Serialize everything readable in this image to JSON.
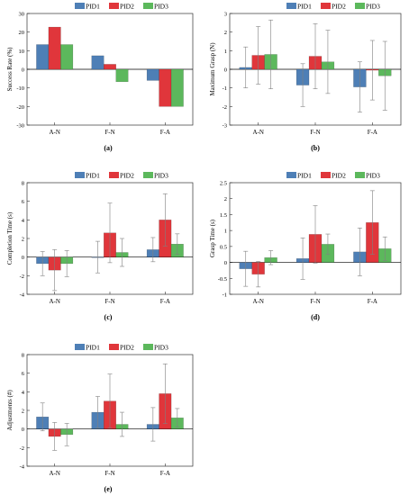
{
  "figure": {
    "legend_labels": [
      "PID1",
      "PID2",
      "PID3"
    ]
  },
  "colors": {
    "PID1": "#4e7fb6",
    "PID2": "#e0363b",
    "PID3": "#5cb85c",
    "error_bar": "#808080",
    "axis": "#000000",
    "grid_zero": "#000000"
  },
  "chart_data": [
    {
      "panel": "a",
      "caption": "(a)",
      "type": "bar",
      "ylabel": "Success Rate (%)",
      "ylim": [
        -30,
        30
      ],
      "yticks": [
        -30,
        -20,
        -10,
        0,
        10,
        20,
        30
      ],
      "categories": [
        "A-N",
        "F-N",
        "F-A"
      ],
      "legend": "top",
      "series": [
        {
          "name": "PID1",
          "values": [
            13.3,
            7.3,
            -6.0
          ]
        },
        {
          "name": "PID2",
          "values": [
            22.7,
            2.7,
            -20.0
          ]
        },
        {
          "name": "PID3",
          "values": [
            13.3,
            -6.7,
            -20.0
          ]
        }
      ]
    },
    {
      "panel": "b",
      "caption": "(b)",
      "type": "bar",
      "ylabel": "Maximum Grasp (N)",
      "ylim": [
        -3,
        3
      ],
      "yticks": [
        -3,
        -2,
        -1,
        0,
        1,
        2,
        3
      ],
      "categories": [
        "A-N",
        "F-N",
        "F-A"
      ],
      "legend": "top",
      "series": [
        {
          "name": "PID1",
          "values": [
            0.1,
            -0.85,
            -0.95
          ],
          "error": [
            1.1,
            1.15,
            1.35
          ]
        },
        {
          "name": "PID2",
          "values": [
            0.75,
            0.7,
            -0.05
          ],
          "error": [
            1.55,
            1.75,
            1.6
          ]
        },
        {
          "name": "PID3",
          "values": [
            0.8,
            0.4,
            -0.35
          ],
          "error": [
            1.85,
            1.7,
            1.85
          ]
        }
      ]
    },
    {
      "panel": "c",
      "caption": "(c)",
      "type": "bar",
      "ylabel": "Completion Time (s)",
      "ylim": [
        -4,
        8
      ],
      "yticks": [
        -4,
        -2,
        0,
        2,
        4,
        6,
        8
      ],
      "categories": [
        "A-N",
        "F-N",
        "F-A"
      ],
      "legend": "top",
      "series": [
        {
          "name": "PID1",
          "values": [
            -0.7,
            0.0,
            0.8
          ],
          "error": [
            1.3,
            1.7,
            1.3
          ]
        },
        {
          "name": "PID2",
          "values": [
            -1.4,
            2.6,
            4.0
          ],
          "error": [
            2.2,
            3.2,
            2.8
          ]
        },
        {
          "name": "PID3",
          "values": [
            -0.7,
            0.5,
            1.4
          ],
          "error": [
            1.4,
            1.5,
            1.1
          ]
        }
      ]
    },
    {
      "panel": "d",
      "caption": "(d)",
      "type": "bar",
      "ylabel": "Grasp Time (s)",
      "ylim": [
        -1,
        2.5
      ],
      "yticks": [
        -1,
        -0.5,
        0,
        0.5,
        1,
        1.5,
        2,
        2.5
      ],
      "categories": [
        "A-N",
        "F-N",
        "F-A"
      ],
      "legend": "top",
      "series": [
        {
          "name": "PID1",
          "values": [
            -0.2,
            0.12,
            0.33
          ],
          "error": [
            0.55,
            0.65,
            0.75
          ]
        },
        {
          "name": "PID2",
          "values": [
            -0.37,
            0.88,
            1.25
          ],
          "error": [
            0.4,
            0.9,
            1.0
          ]
        },
        {
          "name": "PID3",
          "values": [
            0.15,
            0.57,
            0.43
          ],
          "error": [
            0.22,
            0.32,
            0.37
          ]
        }
      ]
    },
    {
      "panel": "e",
      "caption": "(e)",
      "type": "bar",
      "ylabel": "Adjustments (#)",
      "ylim": [
        -4,
        8
      ],
      "yticks": [
        -4,
        -2,
        0,
        2,
        4,
        6,
        8
      ],
      "categories": [
        "A-N",
        "F-N",
        "F-A"
      ],
      "legend": "top",
      "series": [
        {
          "name": "PID1",
          "values": [
            1.3,
            1.8,
            0.5
          ],
          "error": [
            1.5,
            1.7,
            1.8
          ]
        },
        {
          "name": "PID2",
          "values": [
            -0.8,
            3.0,
            3.8
          ],
          "error": [
            1.5,
            2.9,
            3.2
          ]
        },
        {
          "name": "PID3",
          "values": [
            -0.6,
            0.5,
            1.2
          ],
          "error": [
            1.2,
            1.3,
            1.0
          ]
        }
      ]
    }
  ]
}
